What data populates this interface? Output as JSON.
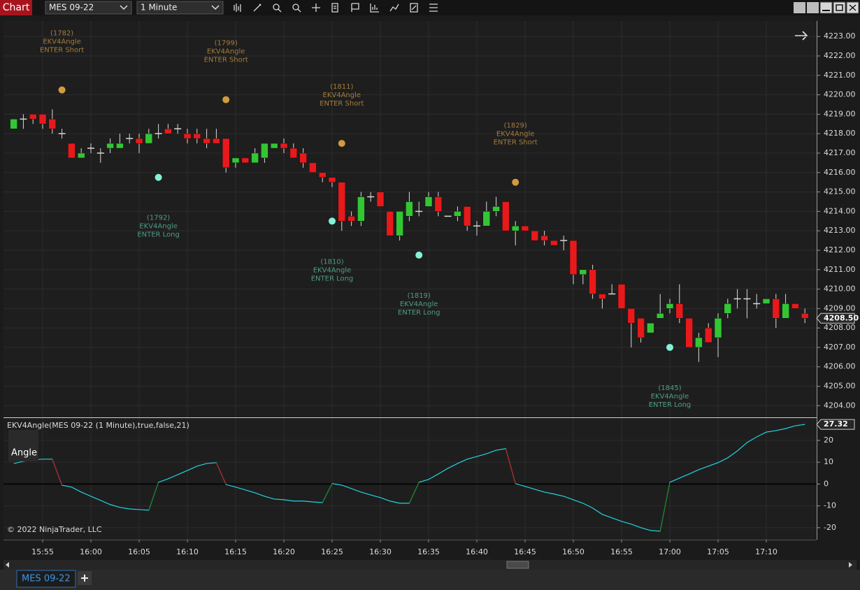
{
  "toolbar": {
    "title": "Chart",
    "instrument": "MES 09-22",
    "interval": "1 Minute"
  },
  "tabs": [
    "MES 09-22"
  ],
  "chart_data": [
    {
      "type": "candlestick",
      "x": [
        "15:52",
        "15:53",
        "15:54",
        "15:55",
        "15:56",
        "15:57",
        "15:58",
        "15:59",
        "16:00",
        "16:01",
        "16:02",
        "16:03",
        "16:04",
        "16:05",
        "16:06",
        "16:07",
        "16:08",
        "16:09",
        "16:10",
        "16:11",
        "16:12",
        "16:13",
        "16:14",
        "16:15",
        "16:16",
        "16:17",
        "16:18",
        "16:19",
        "16:20",
        "16:21",
        "16:22",
        "16:23",
        "16:24",
        "16:25",
        "16:26",
        "16:27",
        "16:28",
        "16:29",
        "16:30",
        "16:31",
        "16:32",
        "16:33",
        "16:34",
        "16:35",
        "16:36",
        "16:37",
        "16:38",
        "16:39",
        "16:40",
        "16:41",
        "16:42",
        "16:43",
        "16:44",
        "16:45",
        "16:46",
        "16:47",
        "16:48",
        "16:49",
        "16:50",
        "16:51",
        "16:52",
        "16:53",
        "16:54",
        "16:55",
        "16:56",
        "16:57",
        "16:58",
        "16:59",
        "17:00",
        "17:01",
        "17:02",
        "17:03",
        "17:04",
        "17:05",
        "17:06",
        "17:07",
        "17:08",
        "17:09",
        "17:10",
        "17:11",
        "17:12",
        "17:13",
        "17:14"
      ],
      "open": [
        4218.25,
        4218.75,
        4219,
        4219,
        4218.75,
        4218,
        4217.5,
        4216.75,
        4217.25,
        4217,
        4217.25,
        4217.25,
        4217.75,
        4217.75,
        4217.5,
        4218,
        4218.25,
        4218.25,
        4218,
        4218,
        4217.75,
        4217.75,
        4217.75,
        4216.5,
        4216.75,
        4216.5,
        4216.75,
        4217.25,
        4217.5,
        4217.25,
        4217,
        4216.5,
        4216,
        4215.75,
        4215.5,
        4213.75,
        4213.5,
        4214.75,
        4215,
        4214,
        4212.75,
        4213.75,
        4214,
        4214.25,
        4214.75,
        4213.75,
        4213.75,
        4214.25,
        4213.25,
        4213.25,
        4214,
        4214.5,
        4213,
        4213.25,
        4213,
        4212.75,
        4212.5,
        4212.5,
        4212.5,
        4210.75,
        4211,
        4209.75,
        4209.75,
        4210.25,
        4209,
        4208.5,
        4207.75,
        4208.5,
        4209,
        4209.25,
        4208.5,
        4207,
        4208,
        4207.5,
        4208.75,
        4209.5,
        4209.5,
        4209.25,
        4209.25,
        4209.5,
        4208.5,
        4209.25,
        4208.75
      ],
      "high": [
        4218.75,
        4219,
        4219,
        4219,
        4219.25,
        4218.25,
        4217.5,
        4217.25,
        4217.5,
        4217.25,
        4217.75,
        4218,
        4218,
        4218,
        4218.25,
        4218.5,
        4218.5,
        4218.5,
        4218.25,
        4218.25,
        4218.25,
        4218.25,
        4217.75,
        4216.75,
        4216.75,
        4217.25,
        4217.5,
        4217.5,
        4217.75,
        4217.5,
        4217.25,
        4216.5,
        4216,
        4215.75,
        4215.5,
        4214,
        4215,
        4215,
        4215,
        4214,
        4214,
        4215,
        4214.5,
        4215,
        4215,
        4213.75,
        4214.25,
        4214.25,
        4213.5,
        4214.5,
        4214.75,
        4214.5,
        4213.5,
        4213.25,
        4213,
        4213,
        4212.5,
        4212.75,
        4212.5,
        4211,
        4211.25,
        4209.75,
        4210.25,
        4210.25,
        4209,
        4208.5,
        4208.25,
        4209.75,
        4209.5,
        4210.25,
        4208.5,
        4207.75,
        4208.25,
        4208.75,
        4209.5,
        4210,
        4210,
        4209.75,
        4209.5,
        4209.75,
        4209.75,
        4209.25,
        4209
      ],
      "low": [
        4218.25,
        4218.25,
        4218.5,
        4218.25,
        4218,
        4217.75,
        4216.75,
        4216.75,
        4217,
        4216.5,
        4217,
        4217.25,
        4217.5,
        4217,
        4217.5,
        4217.75,
        4218,
        4218,
        4217.5,
        4217.5,
        4217.25,
        4217.5,
        4216,
        4216.25,
        4216.5,
        4216.5,
        4216.5,
        4217.25,
        4217,
        4216.75,
        4216.25,
        4216,
        4215.5,
        4215.25,
        4213,
        4213.25,
        4213.25,
        4214.5,
        4214.25,
        4212.75,
        4212.5,
        4213.5,
        4213.75,
        4214.25,
        4213.75,
        4213.75,
        4213.5,
        4213,
        4212.75,
        4213.25,
        4213.75,
        4213,
        4212.25,
        4213,
        4212.5,
        4212.25,
        4212.25,
        4212,
        4210.25,
        4210.25,
        4209.5,
        4209,
        4209.75,
        4209,
        4207,
        4207.25,
        4207.75,
        4208.5,
        4208.75,
        4208.25,
        4207,
        4206.25,
        4207.25,
        4206.5,
        4208.5,
        4209,
        4208.5,
        4209,
        4209.25,
        4208,
        4208.5,
        4209,
        4208.25
      ],
      "close": [
        4218.75,
        4218.75,
        4218.75,
        4218.5,
        4218.25,
        4218,
        4216.75,
        4217,
        4217.25,
        4217,
        4217.5,
        4217.5,
        4217.75,
        4217.5,
        4218,
        4218,
        4218,
        4218.25,
        4217.75,
        4217.75,
        4217.5,
        4217.5,
        4216.25,
        4216.75,
        4216.5,
        4217,
        4217.5,
        4217.5,
        4217.25,
        4216.75,
        4216.5,
        4216,
        4215.75,
        4215.5,
        4213.5,
        4213.5,
        4214.75,
        4214.75,
        4214.25,
        4212.75,
        4214,
        4214.5,
        4214,
        4214.75,
        4214,
        4213.75,
        4214,
        4213.25,
        4213.25,
        4214,
        4214.25,
        4213,
        4213.25,
        4213,
        4212.5,
        4212.5,
        4212.25,
        4212.5,
        4210.75,
        4211,
        4209.75,
        4209.5,
        4209.75,
        4209,
        4208.25,
        4207.5,
        4208.25,
        4208.75,
        4209.25,
        4208.5,
        4207,
        4207.5,
        4207.25,
        4208.5,
        4209.25,
        4209.5,
        4209.5,
        4209.25,
        4209.5,
        4208.5,
        4209.25,
        4209,
        4208.5
      ],
      "up_color": "#33c633",
      "down_color": "#e8191b",
      "wick_color": "#d9d9d9",
      "ylim": [
        4203.4,
        4223.8
      ],
      "yticks": [
        {
          "value": 4204,
          "label": "4204.00"
        },
        {
          "value": 4205,
          "label": "4205.00"
        },
        {
          "value": 4206,
          "label": "4206.00"
        },
        {
          "value": 4207,
          "label": "4207.00"
        },
        {
          "value": 4208,
          "label": "4208.00"
        },
        {
          "value": 4209,
          "label": "4209.00"
        },
        {
          "value": 4210,
          "label": "4210.00"
        },
        {
          "value": 4211,
          "label": "4211.00"
        },
        {
          "value": 4212,
          "label": "4212.00"
        },
        {
          "value": 4213,
          "label": "4213.00"
        },
        {
          "value": 4214,
          "label": "4214.00"
        },
        {
          "value": 4215,
          "label": "4215.00"
        },
        {
          "value": 4216,
          "label": "4216.00"
        },
        {
          "value": 4217,
          "label": "4217.00"
        },
        {
          "value": 4218,
          "label": "4218.00"
        },
        {
          "value": 4219,
          "label": "4219.00"
        },
        {
          "value": 4220,
          "label": "4220.00"
        },
        {
          "value": 4221,
          "label": "4221.00"
        },
        {
          "value": 4222,
          "label": "4222.00"
        },
        {
          "value": 4223,
          "label": "4223.00"
        }
      ],
      "xticks": [
        "15:55",
        "16:00",
        "16:05",
        "16:10",
        "16:15",
        "16:20",
        "16:25",
        "16:30",
        "16:35",
        "16:40",
        "16:45",
        "16:50",
        "16:55",
        "17:00",
        "17:05",
        "17:10"
      ],
      "grid": true,
      "last_price": {
        "value": 4208.5,
        "label": "4208.50"
      },
      "signals": [
        {
          "time": "15:57",
          "price": 4220.25,
          "id": "(1782)",
          "name": "EKV4Angle",
          "action": "ENTER Short",
          "color": "#a57c3c",
          "dot_color": "#d29b3c"
        },
        {
          "time": "16:07",
          "price": 4215.75,
          "id": "(1792)",
          "name": "EKV4Angle",
          "action": "ENTER Long",
          "color": "#4f9c86",
          "dot_color": "#84f2d6"
        },
        {
          "time": "16:14",
          "price": 4219.75,
          "id": "(1799)",
          "name": "EKV4Angle",
          "action": "ENTER Short",
          "color": "#a57c3c",
          "dot_color": "#d29b3c"
        },
        {
          "time": "16:25",
          "price": 4213.5,
          "id": "(1810)",
          "name": "EKV4Angle",
          "action": "ENTER Long",
          "color": "#4f9c86",
          "dot_color": "#84f2d6"
        },
        {
          "time": "16:26",
          "price": 4217.5,
          "id": "(1811)",
          "name": "EKV4Angle",
          "action": "ENTER Short",
          "color": "#a57c3c",
          "dot_color": "#d29b3c"
        },
        {
          "time": "16:34",
          "price": 4211.75,
          "id": "(1819)",
          "name": "EKV4Angle",
          "action": "ENTER Long",
          "color": "#4f9c86",
          "dot_color": "#84f2d6"
        },
        {
          "time": "16:44",
          "price": 4215.5,
          "id": "(1829)",
          "name": "EKV4Angle",
          "action": "ENTER Short",
          "color": "#a57c3c",
          "dot_color": "#d29b3c"
        },
        {
          "time": "17:00",
          "price": 4207,
          "id": "(1845)",
          "name": "EKV4Angle",
          "action": "ENTER Long",
          "color": "#4f9c86",
          "dot_color": "#84f2d6"
        }
      ]
    },
    {
      "type": "line",
      "title": "EKV4Angle(MES 09-22 (1 Minute),true,false,21)",
      "series": [
        {
          "name": "Angle",
          "color": "#22d3e0",
          "up_color": "#1c7d1c",
          "down_color": "#b51e1e",
          "values": [
            9.4,
            10.4,
            11,
            11.4,
            11.4,
            -0.5,
            -1.4,
            -3.7,
            -5.6,
            -7.5,
            -9.4,
            -10.7,
            -11.4,
            -11.7,
            -12,
            0.8,
            2.4,
            4.3,
            6.2,
            8.2,
            9.4,
            9.8,
            -0.2,
            -1.4,
            -2.7,
            -4,
            -5.6,
            -6.9,
            -7.2,
            -7.8,
            -7.8,
            -8.2,
            -8.5,
            0.2,
            -0.5,
            -2.1,
            -3.7,
            -5,
            -6.2,
            -7.8,
            -8.8,
            -8.8,
            0.8,
            2.1,
            4.6,
            7.2,
            9.4,
            11.4,
            12.6,
            13.9,
            15.5,
            16.2,
            0.2,
            -1.1,
            -2.4,
            -3.7,
            -4.6,
            -5.6,
            -7.2,
            -8.8,
            -11,
            -13.9,
            -15.5,
            -17.1,
            -18.4,
            -20,
            -21.3,
            -21.6,
            0.8,
            2.7,
            4.6,
            6.6,
            8.2,
            9.8,
            12,
            15.2,
            19,
            21.6,
            23.8,
            24.5,
            25.4,
            26.7,
            27.32
          ]
        }
      ],
      "ylim": [
        -25.5,
        30.25
      ],
      "yticks": [
        20,
        10,
        0,
        -10,
        -20
      ],
      "grid": true,
      "zero_line": true,
      "copyright": "© 2022 NinjaTrader, LLC"
    }
  ]
}
